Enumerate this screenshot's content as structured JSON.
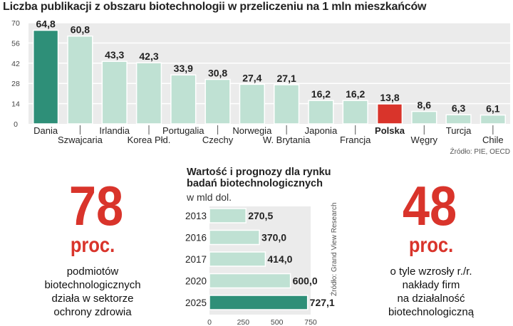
{
  "chart1": {
    "title": "Liczba publikacji z obszaru biotechnologii w  przeliczeniu na 1 mln mieszkańców",
    "source": "Źródło: PIE, OECD"
  },
  "chart2": {
    "title_line1": "Wartość  i prognozy dla rynku",
    "title_line2": "badań biotechnologicznych",
    "subtitle": "w  mld dol.",
    "source": "Źródło: Grand View Research"
  },
  "stat_left": {
    "number": "78",
    "unit": "proc.",
    "caption": [
      "podmiotów",
      "biotechnologicznych",
      "działa w sektorze",
      "ochrony zdrowia"
    ]
  },
  "stat_right": {
    "number": "48",
    "unit": "proc.",
    "caption": [
      "o tyle wzrosły r./r.",
      "nakłady firm",
      "na działalność",
      "biotechnologiczną"
    ]
  },
  "colors": {
    "bar_light": "#bfe1d3",
    "bar_dark": "#2e8f78",
    "bar_poland": "#d9342b",
    "big_number": "#d9342b",
    "panel_bg": "#ebebeb"
  },
  "chart_data": [
    {
      "type": "bar",
      "title": "Liczba publikacji z obszaru biotechnologii w  przeliczeniu na 1 mln mieszkańców",
      "categories": [
        "Dania",
        "Szwajcaria",
        "Irlandia",
        "Korea Płd.",
        "Portugalia",
        "Czechy",
        "Norwegia",
        "W. Brytania",
        "Japonia",
        "Francja",
        "Polska",
        "Węgry",
        "Turcja",
        "Chile"
      ],
      "values": [
        64.8,
        60.8,
        43.3,
        42.3,
        33.9,
        30.8,
        27.4,
        27.1,
        16.2,
        16.2,
        13.8,
        8.6,
        6.3,
        6.1
      ],
      "value_labels": [
        "64,8",
        "60,8",
        "43,3",
        "42,3",
        "33,9",
        "30,8",
        "27,4",
        "27,1",
        "16,2",
        "16,2",
        "13,8",
        "8,6",
        "6,3",
        "6,1"
      ],
      "highlight": {
        "Dania": "dark",
        "Polska": "red"
      },
      "yticks": [
        0,
        14,
        28,
        42,
        56,
        70
      ],
      "ylim": [
        0,
        70
      ],
      "xlabel": "",
      "ylabel": "",
      "grid": true
    },
    {
      "type": "bar",
      "orientation": "horizontal",
      "title": "Wartość  i prognozy dla rynku badań biotechnologicznych",
      "subtitle": "w  mld dol.",
      "categories": [
        "2013",
        "2016",
        "2017",
        "2020",
        "2025"
      ],
      "values": [
        270.5,
        370.0,
        414.0,
        600.0,
        727.1
      ],
      "value_labels": [
        "270,5",
        "370,0",
        "414,0",
        "600,0",
        "727,1"
      ],
      "highlight": {
        "2025": "dark"
      },
      "xticks": [
        0,
        250,
        500,
        750
      ],
      "xlim": [
        0,
        750
      ]
    }
  ]
}
